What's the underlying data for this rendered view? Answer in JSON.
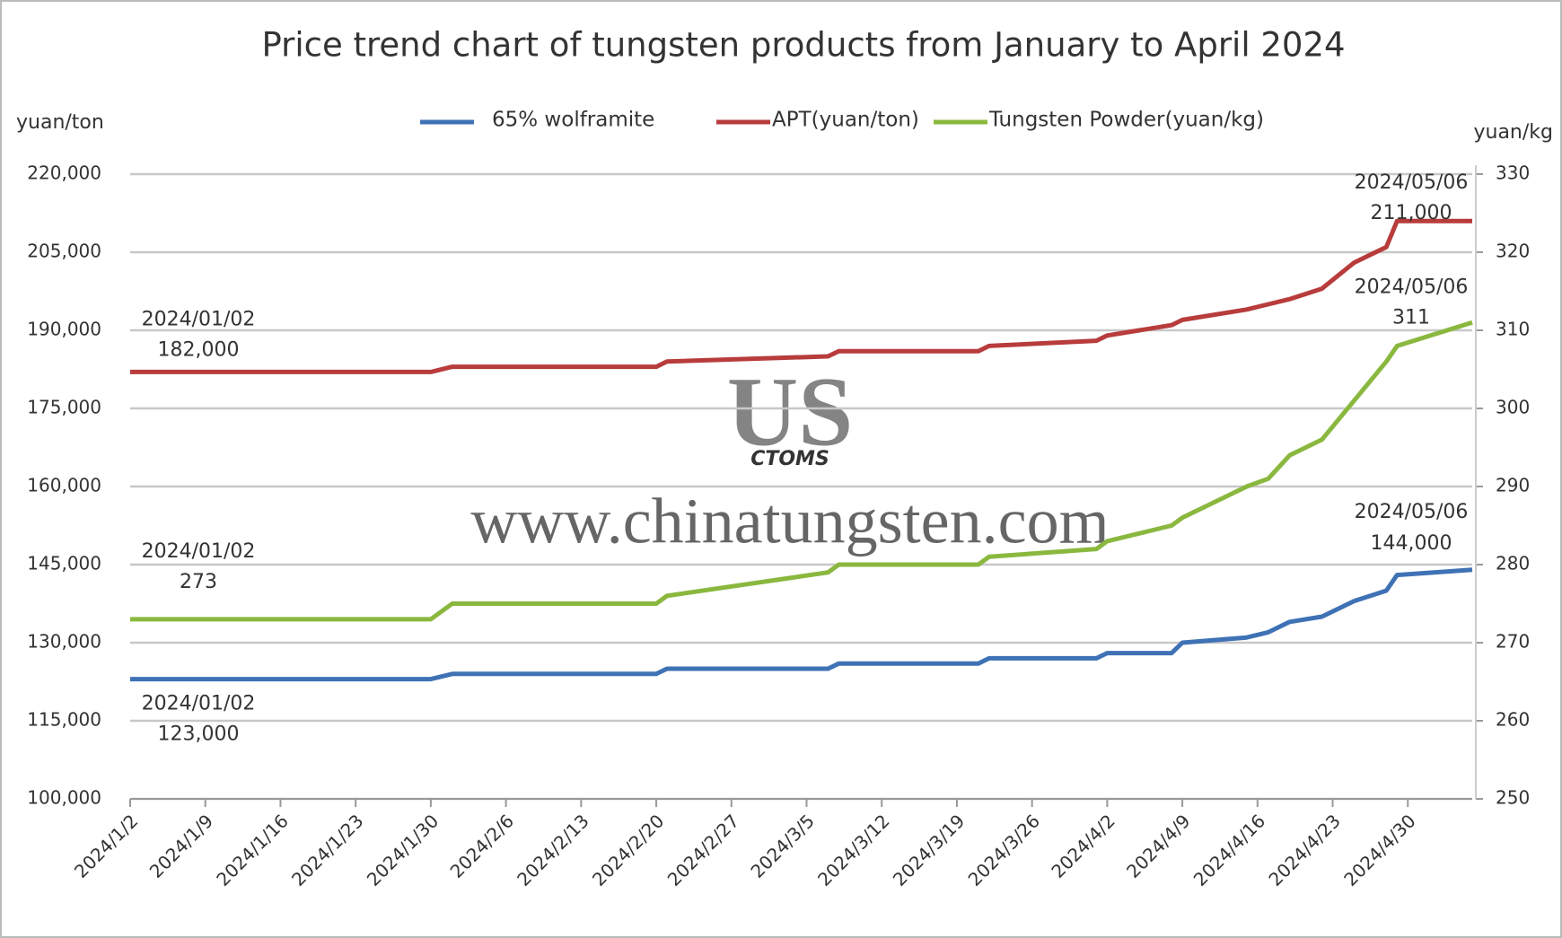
{
  "chart_data": {
    "type": "line",
    "title": "Price trend chart of tungsten products from January to April 2024",
    "y_label": "yuan/ton",
    "y2_label": "yuan/kg",
    "watermark": "www.chinatungsten.com",
    "logo_text": "CTOMS",
    "x": [
      "2024/1/2",
      "2024/1/30",
      "2024/2/1",
      "2024/2/20",
      "2024/2/21",
      "2024/3/7",
      "2024/3/8",
      "2024/3/21",
      "2024/3/22",
      "2024/4/1",
      "2024/4/2",
      "2024/4/8",
      "2024/4/9",
      "2024/4/15",
      "2024/4/17",
      "2024/4/19",
      "2024/4/22",
      "2024/4/25",
      "2024/4/28",
      "2024/4/29",
      "2024/5/6"
    ],
    "xlim": [
      "2024/1/2",
      "2024/5/6"
    ],
    "xticks": [
      "2024/1/2",
      "2024/1/9",
      "2024/1/16",
      "2024/1/23",
      "2024/1/30",
      "2024/2/6",
      "2024/2/13",
      "2024/2/20",
      "2024/2/27",
      "2024/3/5",
      "2024/3/12",
      "2024/3/19",
      "2024/3/26",
      "2024/4/2",
      "2024/4/9",
      "2024/4/16",
      "2024/4/23",
      "2024/4/30"
    ],
    "ylim": [
      100000,
      220000
    ],
    "yticks": [
      {
        "value": 100000,
        "label": "100,000"
      },
      {
        "value": 115000,
        "label": "115,000"
      },
      {
        "value": 130000,
        "label": "130,000"
      },
      {
        "value": 145000,
        "label": "145,000"
      },
      {
        "value": 160000,
        "label": "160,000"
      },
      {
        "value": 175000,
        "label": "175,000"
      },
      {
        "value": 190000,
        "label": "190,000"
      },
      {
        "value": 205000,
        "label": "205,000"
      },
      {
        "value": 220000,
        "label": "220,000"
      }
    ],
    "y2lim": [
      250,
      330
    ],
    "y2ticks": [
      250,
      260,
      270,
      280,
      290,
      300,
      310,
      320,
      330
    ],
    "grid": true,
    "series": [
      {
        "name": "65% wolframite",
        "color": "#3f72b5",
        "values": [
          123000,
          123000,
          124000,
          124000,
          125000,
          125000,
          126000,
          126000,
          127000,
          127000,
          128000,
          128000,
          130000,
          131000,
          132000,
          134000,
          135000,
          138000,
          140000,
          143000,
          144000
        ],
        "annotations": [
          {
            "date": "2024/01/02",
            "label": "123,000"
          },
          {
            "date": "2024/05/06",
            "label": "144,000"
          }
        ]
      },
      {
        "name": "APT(yuan/ton)",
        "color": "#b83c3c",
        "values": [
          182000,
          182000,
          183000,
          183000,
          184000,
          185000,
          186000,
          186000,
          187000,
          188000,
          189000,
          191000,
          192000,
          194000,
          195000,
          196000,
          198000,
          203000,
          206000,
          211000,
          211000
        ],
        "annotations": [
          {
            "date": "2024/01/02",
            "label": "182,000"
          },
          {
            "date": "2024/05/06",
            "label": "211,000"
          }
        ]
      },
      {
        "name": "Tungsten Powder(yuan/kg)",
        "color": "#8ab83f",
        "axis": "y2",
        "values": [
          273,
          273,
          275,
          275,
          276,
          279,
          280,
          280,
          281,
          282,
          283,
          285,
          286,
          290,
          291,
          294,
          296,
          301,
          306,
          308,
          311
        ],
        "annotations": [
          {
            "date": "2024/01/02",
            "label": "273"
          },
          {
            "date": "2024/05/06",
            "label": "311"
          }
        ]
      }
    ]
  }
}
